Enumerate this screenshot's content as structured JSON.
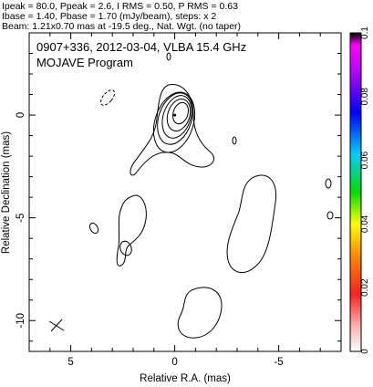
{
  "header": {
    "line1": "Ipeak = 80.0, Ppeak = 2.6, I RMS = 0.50, P RMS = 0.63",
    "line2": "Ibase = 1.40, Pbase = 1.70 (mJy/beam), steps: x 2",
    "line3": "Beam: 1.21x0.70 mas at -19.5 deg., Nat. Wgt. (no taper)"
  },
  "plot": {
    "title_line1": "0907+336, 2012-03-04, VLBA 15.4 GHz",
    "title_line2": "MOJAVE Program"
  },
  "chart_data": {
    "type": "contour",
    "title": "0907+336, 2012-03-04, VLBA 15.4 GHz",
    "subtitle": "MOJAVE Program",
    "xlabel": "Relative R.A. (mas)",
    "ylabel": "Relative Declination (mas)",
    "xlim": [
      7,
      -8
    ],
    "ylim": [
      -11.5,
      4
    ],
    "xticks": [
      5,
      0,
      -5
    ],
    "yticks": [
      0,
      -5,
      -10
    ],
    "peak_position": [
      0,
      0
    ],
    "contour_levels_mJy_per_beam": [
      1.4,
      2.8,
      5.6,
      11.2,
      22.4,
      44.8
    ],
    "beam": {
      "major_mas": 1.21,
      "minor_mas": 0.7,
      "pa_deg": -19.5
    },
    "colorbar": {
      "ticks": [
        "0",
        "0.02",
        "0.04",
        "0.06",
        "0.08",
        "0.1"
      ],
      "range": [
        0,
        0.1
      ]
    }
  }
}
